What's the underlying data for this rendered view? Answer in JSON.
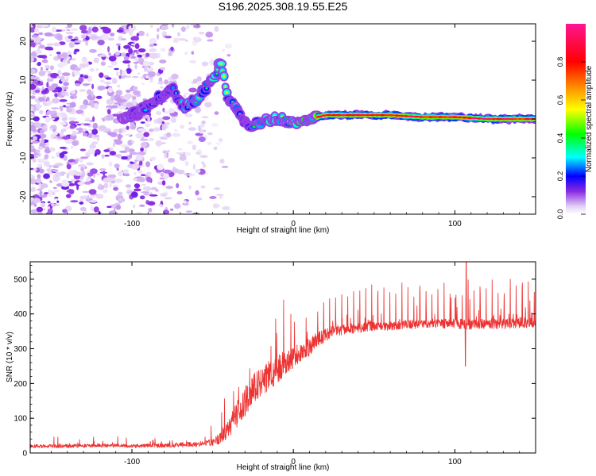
{
  "chart_data": [
    {
      "type": "heatmap",
      "title": "S196.2025.308.19.55.E25",
      "xlabel": "Height of straight line (km)",
      "ylabel": "Frequency (Hz)",
      "xlim": [
        -163,
        150
      ],
      "ylim": [
        -24.5,
        24.5
      ],
      "x_ticks": [
        -100,
        0,
        100
      ],
      "y_ticks": [
        -20,
        -10,
        0,
        10,
        20
      ],
      "colorbar": {
        "label": "Normalized spectral amplitude",
        "range": [
          0.0,
          1.0
        ],
        "ticks": [
          0.0,
          0.2,
          0.4,
          0.6,
          0.8
        ]
      },
      "ridge": {
        "name": "dominant frequency trace",
        "x": [
          -105,
          -95,
          -85,
          -75,
          -68,
          -60,
          -52,
          -45,
          -40,
          -36,
          -32,
          -28,
          -22,
          -15,
          -8,
          0,
          10,
          20,
          40,
          60,
          80,
          100,
          120,
          150
        ],
        "y": [
          0,
          2,
          5,
          8,
          3,
          5,
          9,
          14,
          5,
          3,
          0,
          -2,
          -1,
          0,
          0,
          -1,
          0,
          1,
          1,
          1,
          0.5,
          0.5,
          0,
          0
        ],
        "amplitude": [
          0.2,
          0.25,
          0.3,
          0.35,
          0.45,
          0.5,
          0.5,
          0.55,
          0.5,
          0.45,
          0.3,
          0.3,
          0.45,
          0.55,
          0.6,
          0.65,
          0.7,
          0.85,
          0.95,
          0.95,
          0.85,
          0.75,
          0.85,
          0.9
        ]
      }
    },
    {
      "type": "line",
      "title": "",
      "xlabel": "Height of straight line (km)",
      "ylabel": "SNR (10 * v/v)",
      "xlim": [
        -163,
        150
      ],
      "ylim": [
        0,
        550
      ],
      "x_ticks": [
        -100,
        0,
        100
      ],
      "y_ticks": [
        0,
        100,
        200,
        300,
        400,
        500
      ],
      "series": [
        {
          "name": "SNR",
          "color": "#ee3333",
          "x": [
            -163,
            -140,
            -120,
            -100,
            -80,
            -60,
            -50,
            -45,
            -40,
            -35,
            -30,
            -25,
            -20,
            -15,
            -10,
            -5,
            0,
            5,
            10,
            15,
            20,
            25,
            30,
            40,
            50,
            60,
            70,
            80,
            90,
            100,
            110,
            120,
            130,
            140,
            150
          ],
          "y": [
            20,
            20,
            22,
            20,
            22,
            25,
            30,
            45,
            70,
            110,
            150,
            180,
            210,
            220,
            240,
            260,
            275,
            290,
            305,
            325,
            340,
            350,
            355,
            360,
            365,
            365,
            370,
            370,
            372,
            372,
            370,
            372,
            372,
            375,
            375
          ],
          "spread": [
            10,
            10,
            10,
            10,
            12,
            15,
            20,
            35,
            50,
            80,
            90,
            90,
            90,
            80,
            80,
            70,
            60,
            55,
            50,
            45,
            40,
            35,
            30,
            30,
            25,
            25,
            25,
            25,
            25,
            30,
            30,
            30,
            30,
            30,
            30
          ]
        }
      ]
    }
  ]
}
